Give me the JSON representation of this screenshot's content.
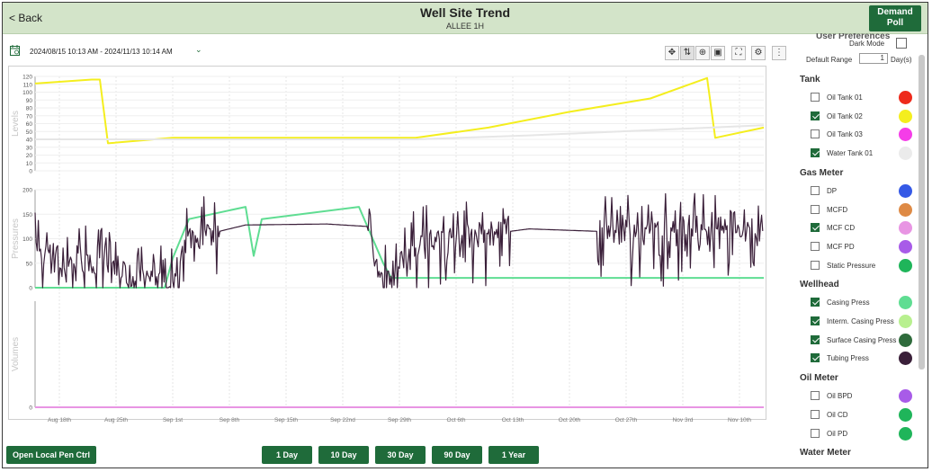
{
  "header": {
    "back_label": "< Back",
    "title": "Well Site Trend",
    "subtitle": "ALLEE 1H",
    "demand_poll_line1": "Demand",
    "demand_poll_line2": "Poll"
  },
  "date_range": "2024/08/15 10:13 AM - 2024/11/13 10:14 AM",
  "toolbar_icons": [
    "pan-icon",
    "zoom-icon",
    "move-icon",
    "box-zoom-icon",
    "fullscreen-icon",
    "settings-icon",
    "more-icon"
  ],
  "sidebar": {
    "prefs_title": "User Preferences",
    "dark_mode_label": "Dark Mode",
    "default_range_label": "Default Range",
    "default_range_value": "1",
    "default_range_unit": "Day(s)",
    "sections": [
      {
        "title": "Tank",
        "items": [
          {
            "label": "Oil Tank 01",
            "checked": false,
            "color": "#ee2a1b"
          },
          {
            "label": "Oil Tank 02",
            "checked": true,
            "color": "#f4ee1e"
          },
          {
            "label": "Oil Tank 03",
            "checked": false,
            "color": "#f53de8"
          },
          {
            "label": "Water Tank 01",
            "checked": true,
            "color": "#ebebeb"
          }
        ]
      },
      {
        "title": "Gas Meter",
        "items": [
          {
            "label": "DP",
            "checked": false,
            "color": "#3559e6"
          },
          {
            "label": "MCFD",
            "checked": false,
            "color": "#de8a45"
          },
          {
            "label": "MCF CD",
            "checked": true,
            "color": "#e895e3"
          },
          {
            "label": "MCF PD",
            "checked": false,
            "color": "#a85be8"
          },
          {
            "label": "Static Pressure",
            "checked": false,
            "color": "#1fb55a"
          }
        ]
      },
      {
        "title": "Wellhead",
        "items": [
          {
            "label": "Casing Press",
            "checked": true,
            "color": "#5fdd92"
          },
          {
            "label": "Interm. Casing Press",
            "checked": true,
            "color": "#b8f08f"
          },
          {
            "label": "Surface Casing Press",
            "checked": true,
            "color": "#2f6b3c"
          },
          {
            "label": "Tubing Press",
            "checked": true,
            "color": "#3a1f39"
          }
        ]
      },
      {
        "title": "Oil Meter",
        "items": [
          {
            "label": "Oil BPD",
            "checked": false,
            "color": "#a85be8"
          },
          {
            "label": "Oil CD",
            "checked": false,
            "color": "#1fb55a"
          },
          {
            "label": "Oil PD",
            "checked": false,
            "color": "#1fb55a"
          }
        ]
      },
      {
        "title": "Water Meter",
        "items": []
      }
    ]
  },
  "bottom": {
    "open_pen_label": "Open Local Pen Ctrl",
    "range_buttons": [
      "1 Day",
      "10 Day",
      "30 Day",
      "90 Day",
      "1 Year"
    ]
  },
  "chart_data": [
    {
      "type": "line",
      "ylabel": "Levels",
      "ylim": [
        0,
        120
      ],
      "yticks": [
        0,
        10,
        20,
        30,
        40,
        50,
        60,
        70,
        80,
        90,
        100,
        110,
        120
      ],
      "series": [
        {
          "name": "Oil Tank 02",
          "color": "#f4ee1e",
          "x": [
            "2024-08-15",
            "2024-08-22",
            "2024-08-23",
            "2024-08-24",
            "2024-09-01",
            "2024-09-15",
            "2024-10-01",
            "2024-10-10",
            "2024-10-20",
            "2024-10-30",
            "2024-11-06",
            "2024-11-07",
            "2024-11-13"
          ],
          "values": [
            111,
            116,
            116,
            35,
            42,
            42,
            42,
            55,
            75,
            92,
            118,
            42,
            55
          ]
        },
        {
          "name": "Water Tank 01",
          "color": "#e6e6e6",
          "x": [
            "2024-08-15",
            "2024-09-15",
            "2024-10-01",
            "2024-10-15",
            "2024-11-13"
          ],
          "values": [
            40,
            40,
            40,
            45,
            58
          ]
        }
      ]
    },
    {
      "type": "line",
      "ylabel": "Pressures",
      "ylim": [
        0,
        200
      ],
      "yticks": [
        0,
        50,
        100,
        150,
        200
      ],
      "series": [
        {
          "name": "Casing Press",
          "color": "#5fdd92",
          "x": [
            "2024-08-15",
            "2024-08-31",
            "2024-09-01",
            "2024-09-03",
            "2024-09-10",
            "2024-09-11",
            "2024-09-12",
            "2024-09-24",
            "2024-09-27",
            "2024-09-28",
            "2024-11-13"
          ],
          "values": [
            0,
            0,
            60,
            140,
            165,
            65,
            140,
            165,
            50,
            20,
            20
          ]
        },
        {
          "name": "Tubing Press",
          "color": "#3a1f39",
          "x": [
            "2024-08-15",
            "2024-09-01",
            "2024-09-03",
            "2024-09-10",
            "2024-09-20",
            "2024-09-25",
            "2024-09-27",
            "2024-10-01",
            "2024-10-15",
            "2024-11-01",
            "2024-11-13"
          ],
          "values": [
            75,
            0,
            100,
            128,
            130,
            125,
            0,
            90,
            120,
            110,
            110
          ]
        }
      ]
    },
    {
      "type": "line",
      "ylabel": "Volumes",
      "ylim": [
        0,
        20
      ],
      "yticks": [
        0
      ],
      "series": [
        {
          "name": "MCF CD",
          "color": "#e895e3",
          "x": [
            "2024-08-15",
            "2024-11-13"
          ],
          "values": [
            0,
            0
          ]
        }
      ]
    }
  ],
  "x_axis": {
    "ticks": [
      "Aug 18th",
      "Aug 25th",
      "Sep 1st",
      "Sep 8th",
      "Sep 15th",
      "Sep 22nd",
      "Sep 29th",
      "Oct 6th",
      "Oct 13th",
      "Oct 20th",
      "Oct 27th",
      "Nov 3rd",
      "Nov 10th"
    ],
    "tick_dates": [
      "2024-08-18",
      "2024-08-25",
      "2024-09-01",
      "2024-09-08",
      "2024-09-15",
      "2024-09-22",
      "2024-09-29",
      "2024-10-06",
      "2024-10-13",
      "2024-10-20",
      "2024-10-27",
      "2024-11-03",
      "2024-11-10"
    ],
    "start": "2024-08-15",
    "end": "2024-11-13"
  }
}
